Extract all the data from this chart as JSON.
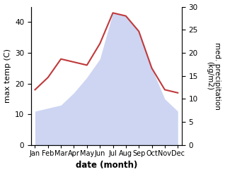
{
  "months": [
    "Jan",
    "Feb",
    "Mar",
    "Apr",
    "May",
    "Jun",
    "Jul",
    "Aug",
    "Sep",
    "Oct",
    "Nov",
    "Dec"
  ],
  "max_temp": [
    18,
    22,
    28,
    27,
    26,
    33,
    43,
    42,
    37,
    25,
    18,
    17
  ],
  "precipitation": [
    11,
    12,
    13,
    17,
    22,
    28,
    43,
    42,
    37,
    25,
    15,
    11
  ],
  "precip_color": "#c0393b",
  "fill_color": "#c5cef0",
  "ylabel_left": "max temp (C)",
  "ylabel_right": "med. precipitation\n(kg/m2)",
  "xlabel": "date (month)",
  "ylim_left": [
    0,
    45
  ],
  "ylim_right": [
    0,
    30
  ],
  "yticks_left": [
    0,
    10,
    20,
    30,
    40
  ],
  "yticks_right": [
    0,
    5,
    10,
    15,
    20,
    25,
    30
  ]
}
